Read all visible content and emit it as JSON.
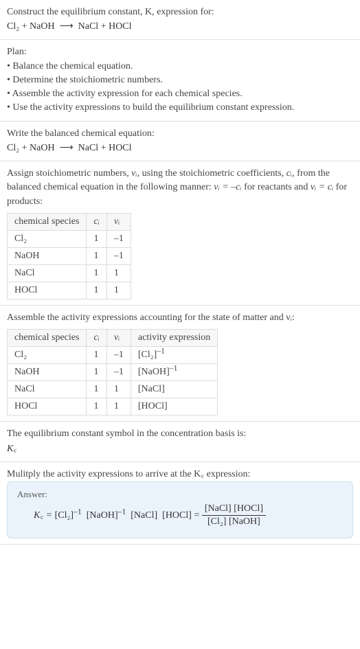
{
  "intro": {
    "line1": "Construct the equilibrium constant, K, expression for:",
    "equation_reactants": "Cl₂ + NaOH",
    "equation_arrow": "⟶",
    "equation_products": "NaCl + HOCl"
  },
  "plan": {
    "heading": "Plan:",
    "items": [
      "• Balance the chemical equation.",
      "• Determine the stoichiometric numbers.",
      "• Assemble the activity expression for each chemical species.",
      "• Use the activity expressions to build the equilibrium constant expression."
    ]
  },
  "balanced": {
    "heading": "Write the balanced chemical equation:",
    "equation_reactants": "Cl₂ + NaOH",
    "equation_arrow": "⟶",
    "equation_products": "NaCl + HOCl"
  },
  "stoich": {
    "text_part1": "Assign stoichiometric numbers, ",
    "nu_i": "νᵢ",
    "text_part2": ", using the stoichiometric coefficients, ",
    "c_i": "cᵢ",
    "text_part3": ", from the balanced chemical equation in the following manner: ",
    "eq1": "νᵢ = –cᵢ",
    "text_part4": " for reactants and ",
    "eq2": "νᵢ = cᵢ",
    "text_part5": " for products:",
    "table": {
      "cols": [
        "chemical species",
        "cᵢ",
        "νᵢ"
      ],
      "rows": [
        [
          "Cl₂",
          "1",
          "–1"
        ],
        [
          "NaOH",
          "1",
          "–1"
        ],
        [
          "NaCl",
          "1",
          "1"
        ],
        [
          "HOCl",
          "1",
          "1"
        ]
      ]
    }
  },
  "activity": {
    "heading": "Assemble the activity expressions accounting for the state of matter and νᵢ:",
    "table": {
      "cols": [
        "chemical species",
        "cᵢ",
        "νᵢ",
        "activity expression"
      ],
      "rows": [
        {
          "species": "Cl₂",
          "c": "1",
          "nu": "–1",
          "expr_base": "[Cl₂]",
          "expr_sup": "–1"
        },
        {
          "species": "NaOH",
          "c": "1",
          "nu": "–1",
          "expr_base": "[NaOH]",
          "expr_sup": "–1"
        },
        {
          "species": "NaCl",
          "c": "1",
          "nu": "1",
          "expr_base": "[NaCl]",
          "expr_sup": ""
        },
        {
          "species": "HOCl",
          "c": "1",
          "nu": "1",
          "expr_base": "[HOCl]",
          "expr_sup": ""
        }
      ]
    }
  },
  "symbol": {
    "line1": "The equilibrium constant symbol in the concentration basis is:",
    "Kc": "K꜀"
  },
  "final": {
    "heading": "Mulitply the activity expressions to arrive at the K꜀ expression:",
    "answer_label": "Answer:",
    "lhs": "K꜀ = ",
    "term1_base": "[Cl₂]",
    "term1_sup": "–1",
    "term2_base": "[NaOH]",
    "term2_sup": "–1",
    "term3": "[NaCl]",
    "term4": "[HOCl]",
    "equals": " = ",
    "frac_num": "[NaCl] [HOCl]",
    "frac_den": "[Cl₂] [NaOH]"
  }
}
